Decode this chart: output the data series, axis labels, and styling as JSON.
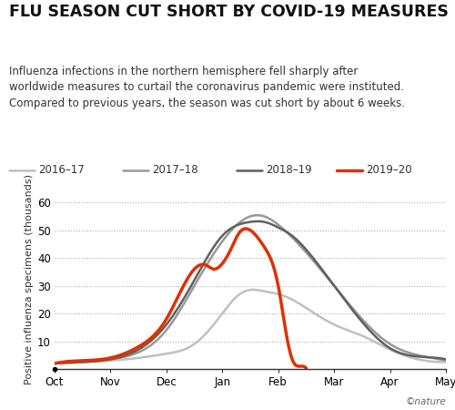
{
  "title": "FLU SEASON CUT SHORT BY COVID-19 MEASURES",
  "subtitle": "Influenza infections in the northern hemisphere fell sharply after\nworldwide measures to curtail the coronavirus pandemic were instituted.\nCompared to previous years, the season was cut short by about 6 weeks.",
  "ylabel": "Positive influenza specimens (thousands)",
  "credit": "©nature",
  "ylim": [
    0,
    65
  ],
  "yticks": [
    0,
    10,
    20,
    30,
    40,
    50,
    60
  ],
  "months": [
    "Oct",
    "Nov",
    "Dec",
    "Jan",
    "Feb",
    "Mar",
    "Apr",
    "May"
  ],
  "series": {
    "2016-17": {
      "color": "#c0c0c0",
      "lw": 1.8,
      "x": [
        0,
        0.5,
        1.0,
        1.5,
        2.0,
        2.5,
        3.0,
        3.25,
        3.5,
        3.75,
        4.0,
        4.25,
        4.5,
        5.0,
        5.5,
        6.0,
        6.5,
        7.0
      ],
      "y": [
        2.0,
        2.5,
        3.0,
        4.0,
        5.5,
        9.0,
        20.0,
        26.0,
        28.5,
        28.0,
        27.0,
        25.0,
        22.0,
        16.0,
        12.0,
        7.0,
        3.5,
        2.5
      ]
    },
    "2017-18": {
      "color": "#999999",
      "lw": 1.8,
      "x": [
        0,
        0.5,
        1.0,
        1.5,
        2.0,
        2.5,
        3.0,
        3.5,
        3.75,
        4.0,
        4.5,
        5.0,
        5.5,
        6.0,
        6.5,
        7.0
      ],
      "y": [
        2.0,
        2.5,
        3.5,
        6.0,
        14.0,
        30.0,
        46.0,
        55.0,
        55.0,
        52.0,
        42.0,
        30.0,
        18.0,
        9.0,
        5.0,
        3.0
      ]
    },
    "2018-19": {
      "color": "#606060",
      "lw": 1.8,
      "x": [
        0,
        0.5,
        1.0,
        1.5,
        2.0,
        2.5,
        3.0,
        3.5,
        3.75,
        4.0,
        4.25,
        4.5,
        5.0,
        5.5,
        6.0,
        6.5,
        7.0
      ],
      "y": [
        2.0,
        2.5,
        3.5,
        7.0,
        16.0,
        32.0,
        48.0,
        53.0,
        53.0,
        51.0,
        48.0,
        43.0,
        30.0,
        17.0,
        7.5,
        4.5,
        3.5
      ]
    },
    "2019-20": {
      "color": "#e03000",
      "lw": 2.5,
      "x": [
        0,
        0.5,
        1.0,
        1.5,
        2.0,
        2.5,
        2.7,
        2.85,
        3.0,
        3.15,
        3.3,
        3.5,
        3.75,
        4.0,
        4.15,
        4.25,
        4.4,
        4.5
      ],
      "y": [
        2.0,
        3.0,
        4.0,
        8.0,
        18.0,
        36.0,
        37.5,
        36.0,
        38.0,
        43.0,
        49.0,
        50.0,
        44.0,
        30.0,
        12.0,
        3.5,
        1.0,
        0.3
      ]
    }
  },
  "legend_order": [
    "2016-17",
    "2017-18",
    "2018-19",
    "2019-20"
  ],
  "background_color": "#ffffff",
  "title_fontsize": 12.5,
  "subtitle_fontsize": 8.5,
  "legend_fontsize": 8.5,
  "ylabel_fontsize": 8.0,
  "tick_fontsize": 8.5
}
